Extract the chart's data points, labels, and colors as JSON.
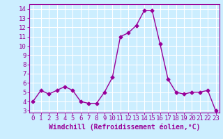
{
  "x": [
    0,
    1,
    2,
    3,
    4,
    5,
    6,
    7,
    8,
    9,
    10,
    11,
    12,
    13,
    14,
    15,
    16,
    17,
    18,
    19,
    20,
    21,
    22,
    23
  ],
  "y": [
    4.0,
    5.2,
    4.8,
    5.2,
    5.6,
    5.2,
    4.0,
    3.8,
    3.8,
    5.0,
    6.6,
    11.0,
    11.4,
    12.2,
    13.8,
    13.8,
    10.2,
    6.4,
    5.0,
    4.8,
    5.0,
    5.0,
    5.2,
    3.0
  ],
  "line_color": "#990099",
  "marker": "D",
  "markersize": 2.5,
  "linewidth": 1.0,
  "xlabel": "Windchill (Refroidissement éolien,°C)",
  "xlabel_fontsize": 7,
  "xlim": [
    -0.5,
    23.5
  ],
  "ylim": [
    2.8,
    14.5
  ],
  "yticks": [
    3,
    4,
    5,
    6,
    7,
    8,
    9,
    10,
    11,
    12,
    13,
    14
  ],
  "xticks": [
    0,
    1,
    2,
    3,
    4,
    5,
    6,
    7,
    8,
    9,
    10,
    11,
    12,
    13,
    14,
    15,
    16,
    17,
    18,
    19,
    20,
    21,
    22,
    23
  ],
  "background_color": "#cceeff",
  "grid_color": "#ffffff",
  "tick_color": "#990099",
  "tick_fontsize": 6.5
}
